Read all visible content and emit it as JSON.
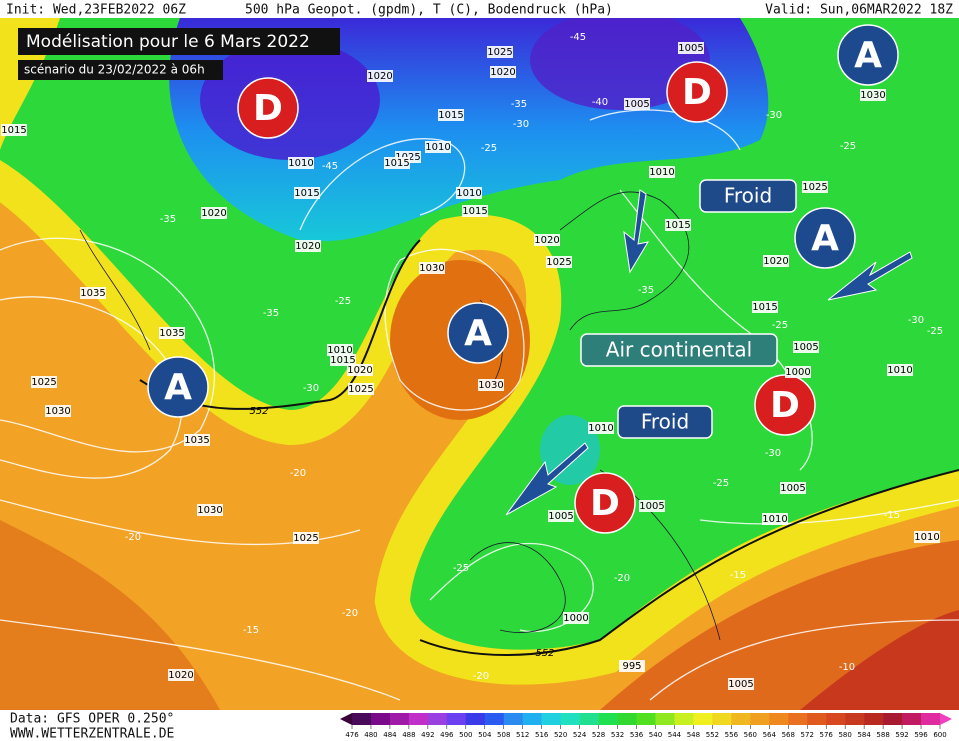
{
  "header": {
    "init": "Init: Wed,23FEB2022 06Z",
    "params": "500 hPa Geopot. (gpdm), T (C), Bodendruck (hPa)",
    "valid": "Valid: Sun,06MAR2022 18Z"
  },
  "title": "Modélisation pour le 6 Mars 2022",
  "subtitle": "scénario du 23/02/2022 à 06h",
  "pressure_centers": [
    "A",
    "D",
    "D",
    "A",
    "A",
    "A",
    "D",
    "D"
  ],
  "annotations": [
    "Froid",
    "Air continental",
    "Froid"
  ],
  "isobar_labels": [
    "1025",
    "1020",
    "1020",
    "1015",
    "1010",
    "1025",
    "1015",
    "1010",
    "1015",
    "1020",
    "1020",
    "1010",
    "1015",
    "1020",
    "1025",
    "1030",
    "1035",
    "1035",
    "1010",
    "1015",
    "1020",
    "1025",
    "1030",
    "1025",
    "1030",
    "1035",
    "1030",
    "1025",
    "1020",
    "1005",
    "1005",
    "1030",
    "1025",
    "1010",
    "1015",
    "1020",
    "1015",
    "1005",
    "1000",
    "1010",
    "1010",
    "1005",
    "1005",
    "1005",
    "1010",
    "1010",
    "1000",
    "995",
    "1005",
    "1015"
  ],
  "temperature_labels": [
    "-45",
    "-35",
    "-30",
    "-40",
    "-25",
    "-45",
    "-35",
    "-35",
    "-25",
    "-30",
    "-30",
    "-25",
    "-35",
    "-25",
    "-30",
    "-25",
    "-30",
    "-25",
    "-20",
    "-20",
    "-25",
    "-20",
    "-15",
    "-15",
    "-20",
    "-15",
    "-20",
    "-10"
  ],
  "geopotential_labels": [
    "552",
    "552"
  ],
  "footer": {
    "data": "Data: GFS OPER 0.250°",
    "source": "WWW.WETTERZENTRALE.DE"
  },
  "colorbar": {
    "ticks": [
      476,
      480,
      484,
      488,
      492,
      496,
      500,
      504,
      508,
      512,
      516,
      520,
      524,
      528,
      532,
      536,
      540,
      544,
      548,
      552,
      556,
      560,
      564,
      568,
      572,
      576,
      580,
      584,
      588,
      592,
      596,
      600
    ]
  }
}
